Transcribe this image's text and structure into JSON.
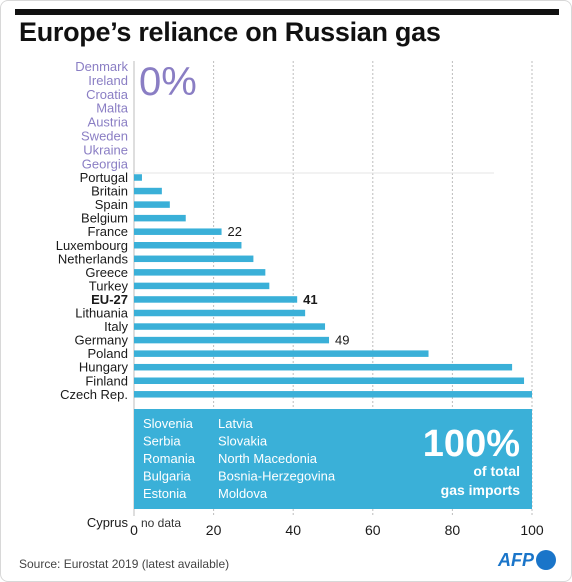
{
  "title": "Europe’s reliance on Russian gas",
  "source": "Source: Eurostat 2019 (latest available)",
  "logo": "AFP",
  "colors": {
    "bar": "#3ab0d8",
    "zero_text": "#8a7ec4",
    "grid": "#bdbdbd",
    "logo": "#1a75c9"
  },
  "chart_data": {
    "type": "bar",
    "orientation": "horizontal",
    "unit": "% of total gas imports",
    "xlim": [
      0,
      100
    ],
    "x_ticks": [
      "0",
      "20",
      "40",
      "60",
      "80",
      "100"
    ],
    "zero_group": {
      "label": "0%",
      "countries": [
        "Denmark",
        "Ireland",
        "Croatia",
        "Malta",
        "Austria",
        "Sweden",
        "Ukraine",
        "Georgia"
      ]
    },
    "bars": [
      {
        "label": "Portugal",
        "value": 2
      },
      {
        "label": "Britain",
        "value": 7
      },
      {
        "label": "Spain",
        "value": 9
      },
      {
        "label": "Belgium",
        "value": 13
      },
      {
        "label": "France",
        "value": 22,
        "data_label": "22"
      },
      {
        "label": "Luxembourg",
        "value": 27
      },
      {
        "label": "Netherlands",
        "value": 30
      },
      {
        "label": "Greece",
        "value": 33
      },
      {
        "label": "Turkey",
        "value": 34
      },
      {
        "label": "EU-27",
        "value": 41,
        "data_label": "41",
        "bold": true
      },
      {
        "label": "Lithuania",
        "value": 43
      },
      {
        "label": "Italy",
        "value": 48
      },
      {
        "label": "Germany",
        "value": 49,
        "data_label": "49"
      },
      {
        "label": "Poland",
        "value": 74
      },
      {
        "label": "Hungary",
        "value": 95
      },
      {
        "label": "Finland",
        "value": 98
      },
      {
        "label": "Czech Rep.",
        "value": 100
      }
    ],
    "full_group": {
      "value": 100,
      "big_label": "100%",
      "sub_label_line1": "of total",
      "sub_label_line2": "gas imports",
      "countries_col1": [
        "Slovenia",
        "Serbia",
        "Romania",
        "Bulgaria",
        "Estonia"
      ],
      "countries_col2": [
        "Latvia",
        "Slovakia",
        "North Macedonia",
        "Bosnia-Herzegovina",
        "Moldova"
      ]
    },
    "no_data": {
      "label": "Cyprus",
      "text": "no data"
    }
  }
}
